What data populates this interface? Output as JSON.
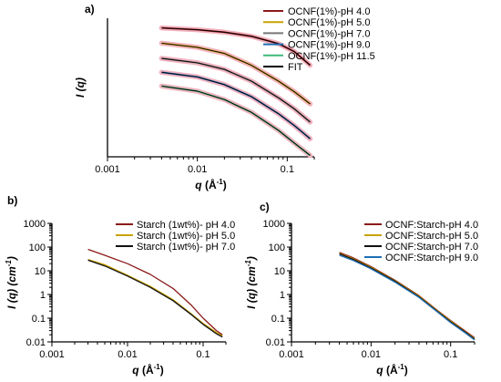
{
  "chart_data": [
    {
      "panel": "a)",
      "type": "line",
      "xscale": "log",
      "yscale": "log",
      "xlim": [
        0.001,
        0.2
      ],
      "x_ticks": [
        "0.001",
        "0.01",
        "0.1"
      ],
      "xlabel": {
        "main": "q",
        "paren_open": " (",
        "unit": "Å",
        "exp": "-1",
        "paren_close": ")"
      },
      "ylabel": {
        "main": "I (q)"
      },
      "y_tick_labels": "none",
      "legend_position": "top-right",
      "series": [
        {
          "name": "OCNF(1%)-pH 4.0",
          "color": "#8b1a1a",
          "band": "#f2b2bf",
          "x": [
            0.004,
            0.01,
            0.02,
            0.04,
            0.08,
            0.12,
            0.18
          ],
          "y": [
            1.0,
            0.86,
            0.7,
            0.5,
            0.27,
            0.14,
            0.045
          ]
        },
        {
          "name": "OCNF(1%)-pH 5.0",
          "color": "#c8a200",
          "band": "#f2b2bf",
          "x": [
            0.004,
            0.01,
            0.02,
            0.04,
            0.08,
            0.12,
            0.18
          ],
          "y": [
            0.28,
            0.2,
            0.12,
            0.045,
            0.012,
            0.005,
            0.0018
          ]
        },
        {
          "name": "OCNF(1%)-pH 7.0",
          "color": "#777777",
          "band": "#f2b2bf",
          "x": [
            0.004,
            0.01,
            0.02,
            0.04,
            0.08,
            0.12,
            0.18
          ],
          "y": [
            0.08,
            0.055,
            0.032,
            0.012,
            0.003,
            0.0012,
            0.0004
          ]
        },
        {
          "name": "OCNF(1%)-pH 9.0",
          "color": "#1f6fb5",
          "band": "#f2b2bf",
          "x": [
            0.004,
            0.01,
            0.02,
            0.04,
            0.08,
            0.12,
            0.18
          ],
          "y": [
            0.025,
            0.017,
            0.009,
            0.0033,
            0.0008,
            0.0003,
            0.0001
          ]
        },
        {
          "name": "OCNF(1%)-pH 11.5",
          "color": "#3db878",
          "band": "#f2b2bf",
          "x": [
            0.004,
            0.01,
            0.02,
            0.04,
            0.08,
            0.12,
            0.18
          ],
          "y": [
            0.008,
            0.0052,
            0.0026,
            0.0009,
            0.0002,
            7e-05,
            2.5e-05
          ]
        },
        {
          "name": "FIT",
          "color": "#000000",
          "legend_only": true
        }
      ]
    },
    {
      "panel": "b)",
      "type": "line",
      "xscale": "log",
      "yscale": "log",
      "xlim": [
        0.001,
        0.2
      ],
      "ylim": [
        0.01,
        1000
      ],
      "x_ticks": [
        "0.001",
        "0.01",
        "0.1"
      ],
      "y_ticks": [
        "0.01",
        "0.1",
        "1",
        "10",
        "100",
        "1000"
      ],
      "xlabel": {
        "main": "q",
        "paren_open": " (",
        "unit": "Å",
        "exp": "-1",
        "paren_close": ")"
      },
      "ylabel": {
        "main": "I (q) (cm",
        "exp": "-1",
        "close": ")"
      },
      "legend_position": "top-right",
      "series": [
        {
          "name": "Starch (1wt%)- pH 4.0",
          "color": "#8b1a1a",
          "x": [
            0.003,
            0.005,
            0.01,
            0.02,
            0.04,
            0.07,
            0.1,
            0.15,
            0.18
          ],
          "y": [
            80,
            45,
            20,
            7,
            1.8,
            0.35,
            0.1,
            0.03,
            0.02
          ]
        },
        {
          "name": "Starch (1wt%)- pH 5.0",
          "color": "#c8a200",
          "x": [
            0.003,
            0.005,
            0.01,
            0.02,
            0.04,
            0.07,
            0.1,
            0.15,
            0.18
          ],
          "y": [
            30,
            18,
            6.5,
            2.2,
            0.6,
            0.15,
            0.06,
            0.025,
            0.018
          ]
        },
        {
          "name": "Starch (1wt%)- pH 7.0",
          "color": "#111111",
          "x": [
            0.003,
            0.005,
            0.01,
            0.02,
            0.04,
            0.07,
            0.1,
            0.15,
            0.18
          ],
          "y": [
            28,
            16,
            6,
            2,
            0.55,
            0.14,
            0.055,
            0.022,
            0.016
          ]
        }
      ]
    },
    {
      "panel": "c)",
      "type": "line",
      "xscale": "log",
      "yscale": "log",
      "xlim": [
        0.001,
        0.2
      ],
      "ylim": [
        0.01,
        1000
      ],
      "x_ticks": [
        "0.001",
        "0.01",
        "0.1"
      ],
      "y_ticks": [
        "0.01",
        "0.1",
        "1",
        "10",
        "100",
        "1000"
      ],
      "xlabel": {
        "main": "q",
        "paren_open": " (",
        "unit": "Å",
        "exp": "-1",
        "paren_close": ")"
      },
      "ylabel": {
        "main": "I (q) (cm",
        "exp": "-1",
        "close": ")"
      },
      "legend_position": "top-right",
      "series": [
        {
          "name": "OCNF:Starch-pH 4.0",
          "color": "#8b1a1a",
          "x": [
            0.004,
            0.006,
            0.01,
            0.02,
            0.04,
            0.07,
            0.1,
            0.15,
            0.2
          ],
          "y": [
            60,
            35,
            15,
            4,
            0.9,
            0.2,
            0.08,
            0.03,
            0.015
          ]
        },
        {
          "name": "OCNF:Starch-pH 5.0",
          "color": "#c8a200",
          "x": [
            0.004,
            0.006,
            0.01,
            0.02,
            0.04,
            0.07,
            0.1,
            0.15,
            0.2
          ],
          "y": [
            55,
            32,
            14,
            3.8,
            0.85,
            0.19,
            0.075,
            0.028,
            0.014
          ]
        },
        {
          "name": "OCNF:Starch-pH 7.0",
          "color": "#111111",
          "x": [
            0.004,
            0.006,
            0.01,
            0.02,
            0.04,
            0.07,
            0.1,
            0.15,
            0.2
          ],
          "y": [
            52,
            30,
            13,
            3.6,
            0.8,
            0.18,
            0.07,
            0.027,
            0.013
          ]
        },
        {
          "name": "OCNF:Starch-pH 9.0",
          "color": "#1f6fb5",
          "x": [
            0.004,
            0.006,
            0.01,
            0.02,
            0.04,
            0.07,
            0.1,
            0.15,
            0.2
          ],
          "y": [
            45,
            27,
            12,
            3.3,
            0.75,
            0.17,
            0.065,
            0.025,
            0.012
          ]
        }
      ]
    }
  ]
}
